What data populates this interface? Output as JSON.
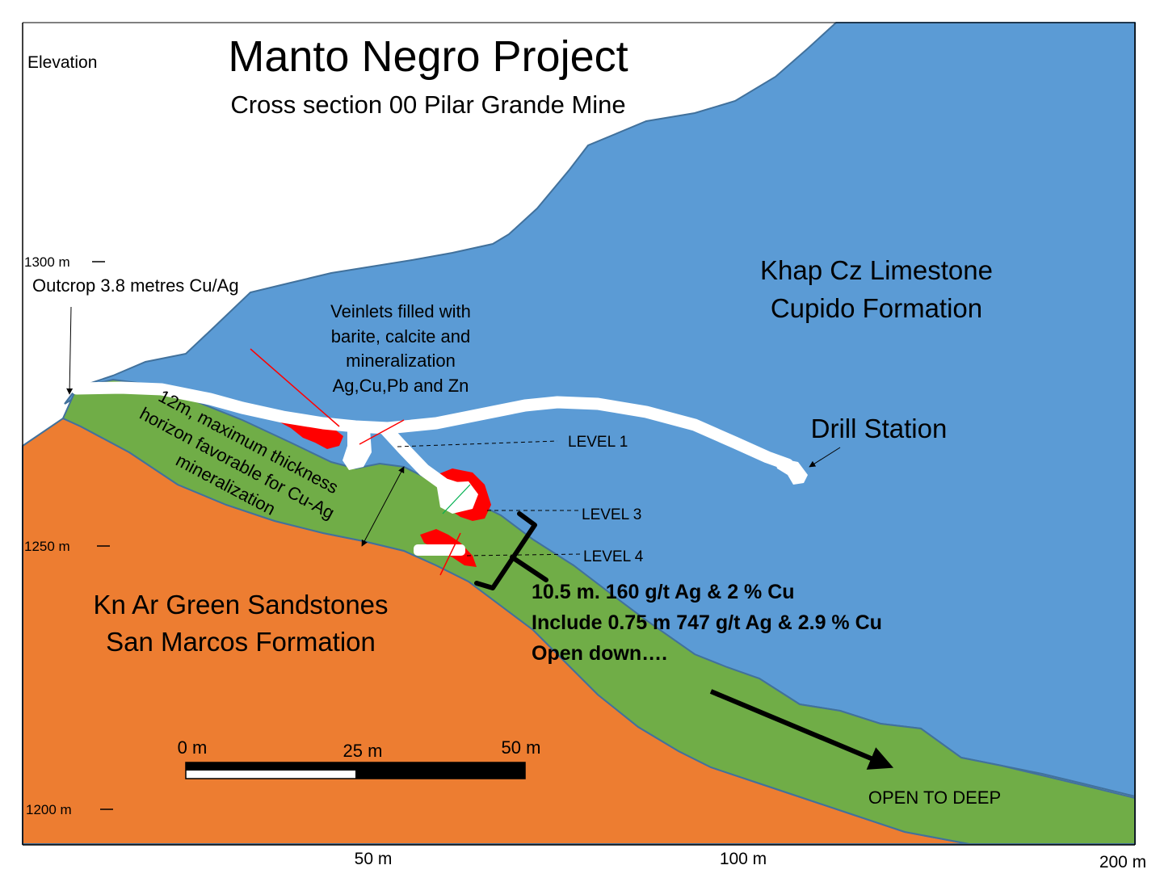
{
  "title": "Manto Negro Project",
  "subtitle": "Cross section 00 Pilar Grande Mine",
  "elevation_label": "Elevation",
  "elevation_ticks": [
    "1300 m",
    "1250 m",
    "1200 m"
  ],
  "distance_ticks": [
    "50 m",
    "100 m",
    "200 m"
  ],
  "units": {
    "limestone": [
      "Khap Cz Limestone",
      "Cupido Formation"
    ],
    "sandstone": [
      "Kn Ar Green Sandstones",
      "San Marcos Formation"
    ],
    "horizon": [
      "12m, maximum thickness",
      "horizon favorable for Cu-Ag",
      "mineralization"
    ]
  },
  "annotations": {
    "outcrop": "Outcrop 3.8 metres Cu/Ag",
    "veinlets": [
      "Veinlets filled with",
      "barite, calcite and",
      "mineralization",
      "Ag,Cu,Pb and Zn"
    ],
    "drill_station": "Drill Station",
    "level1": "LEVEL 1",
    "level3": "LEVEL 3",
    "level4": "LEVEL 4",
    "open_to_deep": "OPEN TO DEEP"
  },
  "result": {
    "line1": "10.5 m. 160 g/t Ag  & 2 % Cu",
    "line2": "Include 0.75 m 747 g/t Ag  & 2.9 % Cu",
    "line3": "Open down…."
  },
  "scale_bar": {
    "labels": [
      "0 m",
      "25 m",
      "50 m"
    ]
  },
  "colors": {
    "limestone": "#5b9bd5",
    "sandstone": "#ed7d31",
    "horizon": "#70ad47",
    "ore": "#ff0000",
    "workings": "#ffffff",
    "outline": "#2e5d8a"
  }
}
